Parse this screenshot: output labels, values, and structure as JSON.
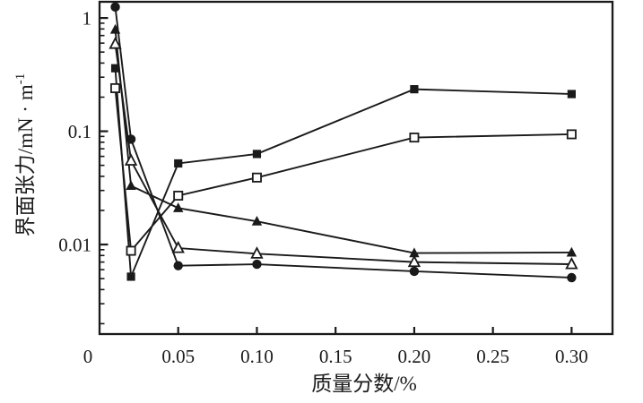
{
  "figure": {
    "background": "#ffffff",
    "foreground": "#1a1a1a"
  },
  "chart_data": {
    "type": "line",
    "x_scale": "linear",
    "y_scale": "log",
    "title": "",
    "xlabel": "质量分数/%",
    "ylabel": "界面张力/mN·m⁻¹",
    "ylabel_base": "界面张力/mN · m",
    "ylabel_sup": "-1",
    "xlim": [
      0,
      0.326
    ],
    "ylim": [
      0.00162,
      1.39
    ],
    "xticks": [
      {
        "v": 0,
        "label": "0"
      },
      {
        "v": 0.05,
        "label": "0.05"
      },
      {
        "v": 0.1,
        "label": "0.10"
      },
      {
        "v": 0.15,
        "label": "0.15"
      },
      {
        "v": 0.2,
        "label": "0.20"
      },
      {
        "v": 0.25,
        "label": "0.25"
      },
      {
        "v": 0.3,
        "label": "0.30"
      }
    ],
    "yticks": [
      {
        "v": 1,
        "label": "1"
      },
      {
        "v": 0.1,
        "label": "0.1"
      },
      {
        "v": 0.01,
        "label": "0.01"
      }
    ],
    "minor_tick_decades": [
      -3,
      -2,
      -1,
      0
    ],
    "grid": false,
    "legend": false,
    "line_color": "#1a1a1a",
    "x": [
      0.01,
      0.02,
      0.05,
      0.1,
      0.2,
      0.3
    ],
    "series": [
      {
        "name": "filled-square-series",
        "marker": "square-filled",
        "values": [
          0.36,
          0.0052,
          0.052,
          0.063,
          0.235,
          0.213
        ]
      },
      {
        "name": "open-square-series",
        "marker": "square-open",
        "values": [
          0.24,
          0.0088,
          0.027,
          0.039,
          0.088,
          0.094
        ]
      },
      {
        "name": "filled-triangle-series",
        "marker": "triangle-filled",
        "values": [
          0.79,
          0.033,
          0.021,
          0.016,
          0.0084,
          0.0085
        ]
      },
      {
        "name": "open-triangle-series",
        "marker": "triangle-open",
        "values": [
          0.59,
          0.055,
          0.0093,
          0.0083,
          0.007,
          0.0067
        ]
      },
      {
        "name": "filled-circle-series",
        "marker": "circle-filled",
        "values": [
          1.25,
          0.085,
          0.0065,
          0.0067,
          0.0058,
          0.0051
        ]
      }
    ]
  }
}
